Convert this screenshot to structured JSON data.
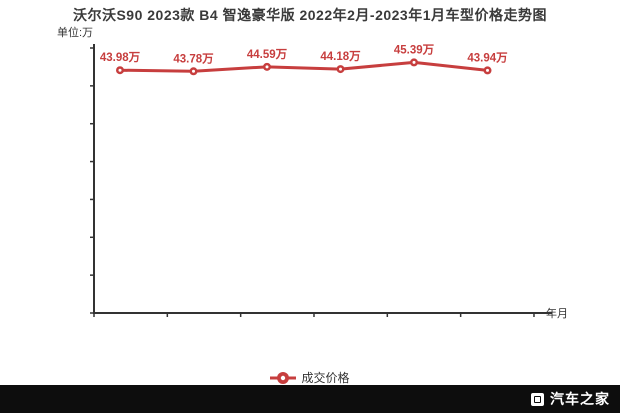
{
  "header": {
    "title": "沃尔沃S90 2023款 B4 智逸豪华版 2022年2月-2023年1月车型价格走势图"
  },
  "chart_data": {
    "type": "line",
    "title": "沃尔沃S90 2023款 B4 智逸豪华版 2022年2月-2023年1月车型价格走势图",
    "unit_label": "单位:万",
    "xlabel": "年月",
    "ylabel": "单位:万",
    "ylim": [
      0,
      48
    ],
    "y_tick_count": 8,
    "x_tick_count": 7,
    "grid": false,
    "legend_position": "bottom-center",
    "series": [
      {
        "name": "成交价格",
        "color": "#c73e3e",
        "values": [
          43.98,
          43.78,
          44.59,
          44.18,
          45.39,
          43.94
        ],
        "labels": [
          "43.98万",
          "43.78万",
          "44.59万",
          "44.18万",
          "45.39万",
          "43.94万"
        ]
      }
    ]
  },
  "colors": {
    "accent_red": "#c73e3e",
    "axis": "#333333",
    "footer_bg": "#0d0d0d"
  },
  "footer": {
    "brand": "汽车之家"
  }
}
